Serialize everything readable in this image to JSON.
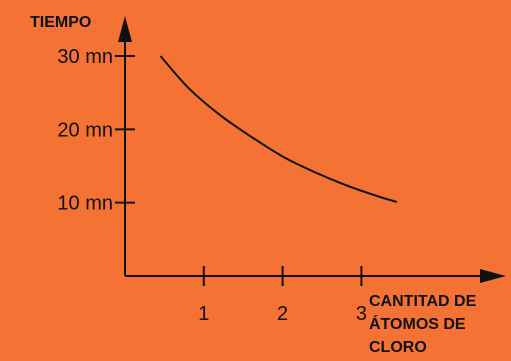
{
  "chart_data": {
    "type": "line",
    "ylabel": "TIEMPO",
    "xlabel_lines": [
      "CANTITAD DE",
      "ÁTOMOS DE",
      "CLORO"
    ],
    "x_ticks": [
      1,
      2,
      3
    ],
    "x_tick_labels": [
      "1",
      "2",
      "3"
    ],
    "y_ticks": [
      10,
      20,
      30
    ],
    "y_tick_labels": [
      "10 mn",
      "20 mn",
      "30 mn"
    ],
    "xlim": [
      0,
      4.5
    ],
    "ylim": [
      0,
      36
    ],
    "series": [
      {
        "x": [
          0.45,
          0.8,
          1.2,
          1.6,
          2.0,
          2.4,
          2.8,
          3.2,
          3.45
        ],
        "y": [
          30,
          25.7,
          22,
          19.0,
          16.3,
          14.2,
          12.4,
          10.9,
          10.1
        ]
      }
    ],
    "grid": false,
    "colors": {
      "background": "#F47234",
      "axis": "#111111",
      "line": "#111111"
    }
  }
}
